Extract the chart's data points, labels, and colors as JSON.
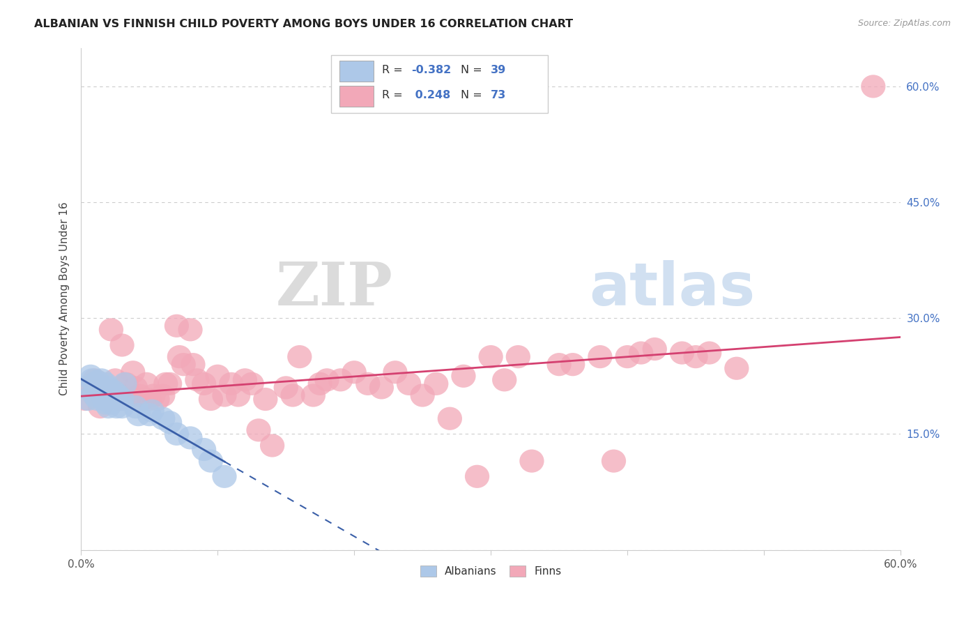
{
  "title": "ALBANIAN VS FINNISH CHILD POVERTY AMONG BOYS UNDER 16 CORRELATION CHART",
  "source": "Source: ZipAtlas.com",
  "ylabel": "Child Poverty Among Boys Under 16",
  "yticks": [
    0.0,
    0.15,
    0.3,
    0.45,
    0.6
  ],
  "ytick_labels": [
    "",
    "15.0%",
    "30.0%",
    "45.0%",
    "60.0%"
  ],
  "xticks": [
    0.0,
    0.1,
    0.2,
    0.3,
    0.4,
    0.5,
    0.6
  ],
  "xmin": 0.0,
  "xmax": 0.6,
  "ymin": 0.0,
  "ymax": 0.65,
  "albanian_color": "#adc8e8",
  "finn_color": "#f2a8b8",
  "albanian_line_color": "#3a5fa8",
  "finn_line_color": "#d44070",
  "watermark_zip": "ZIP",
  "watermark_atlas": "atlas",
  "albanians_x": [
    0.003,
    0.005,
    0.007,
    0.008,
    0.01,
    0.01,
    0.012,
    0.012,
    0.014,
    0.015,
    0.015,
    0.016,
    0.017,
    0.018,
    0.018,
    0.019,
    0.02,
    0.02,
    0.02,
    0.022,
    0.022,
    0.024,
    0.025,
    0.026,
    0.027,
    0.03,
    0.03,
    0.032,
    0.04,
    0.042,
    0.05,
    0.052,
    0.06,
    0.065,
    0.07,
    0.08,
    0.09,
    0.095,
    0.105
  ],
  "albanians_y": [
    0.21,
    0.195,
    0.225,
    0.22,
    0.215,
    0.2,
    0.218,
    0.195,
    0.21,
    0.22,
    0.205,
    0.2,
    0.195,
    0.215,
    0.19,
    0.2,
    0.21,
    0.195,
    0.185,
    0.2,
    0.19,
    0.205,
    0.195,
    0.185,
    0.2,
    0.195,
    0.185,
    0.215,
    0.185,
    0.175,
    0.175,
    0.18,
    0.17,
    0.165,
    0.15,
    0.145,
    0.13,
    0.115,
    0.095
  ],
  "finns_x": [
    0.003,
    0.006,
    0.01,
    0.014,
    0.016,
    0.02,
    0.022,
    0.025,
    0.028,
    0.03,
    0.033,
    0.036,
    0.038,
    0.04,
    0.043,
    0.045,
    0.048,
    0.05,
    0.053,
    0.056,
    0.06,
    0.062,
    0.065,
    0.07,
    0.072,
    0.075,
    0.08,
    0.082,
    0.085,
    0.09,
    0.095,
    0.1,
    0.105,
    0.11,
    0.115,
    0.12,
    0.125,
    0.13,
    0.135,
    0.14,
    0.15,
    0.155,
    0.16,
    0.17,
    0.175,
    0.18,
    0.19,
    0.2,
    0.21,
    0.22,
    0.23,
    0.24,
    0.25,
    0.26,
    0.27,
    0.28,
    0.29,
    0.3,
    0.31,
    0.32,
    0.33,
    0.35,
    0.36,
    0.38,
    0.39,
    0.4,
    0.41,
    0.42,
    0.44,
    0.45,
    0.46,
    0.48,
    0.58
  ],
  "finns_y": [
    0.195,
    0.21,
    0.22,
    0.185,
    0.21,
    0.195,
    0.285,
    0.22,
    0.195,
    0.265,
    0.215,
    0.2,
    0.23,
    0.21,
    0.2,
    0.195,
    0.215,
    0.195,
    0.2,
    0.195,
    0.2,
    0.215,
    0.215,
    0.29,
    0.25,
    0.24,
    0.285,
    0.24,
    0.22,
    0.215,
    0.195,
    0.225,
    0.2,
    0.215,
    0.2,
    0.22,
    0.215,
    0.155,
    0.195,
    0.135,
    0.21,
    0.2,
    0.25,
    0.2,
    0.215,
    0.22,
    0.22,
    0.23,
    0.215,
    0.21,
    0.23,
    0.215,
    0.2,
    0.215,
    0.17,
    0.225,
    0.095,
    0.25,
    0.22,
    0.25,
    0.115,
    0.24,
    0.24,
    0.25,
    0.115,
    0.25,
    0.255,
    0.26,
    0.255,
    0.25,
    0.255,
    0.235,
    0.6
  ]
}
